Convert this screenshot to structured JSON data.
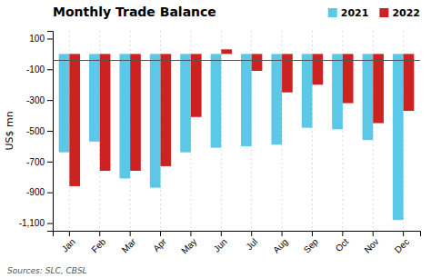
{
  "chart_data": {
    "type": "bar",
    "title": "Monthly Trade Balance",
    "ylabel": "US$ mn",
    "source": "Sources: SLC, CBSL",
    "categories": [
      "Jan",
      "Feb",
      "Mar",
      "Apr",
      "May",
      "Jun",
      "Jul",
      "Aug",
      "Sep",
      "Oct",
      "Nov",
      "Dec"
    ],
    "series": [
      {
        "name": "2021",
        "color": "#5bc8e8",
        "values": [
          -640,
          -570,
          -810,
          -870,
          -640,
          -610,
          -600,
          -590,
          -480,
          -490,
          -560,
          -1080
        ]
      },
      {
        "name": "2022",
        "color": "#cc2222",
        "values": [
          -860,
          -760,
          -760,
          -730,
          -410,
          30,
          -110,
          -250,
          -200,
          -320,
          -450,
          -370
        ]
      }
    ],
    "hline": -42,
    "ylim": [
      -1150,
      150
    ],
    "yticks": [
      100,
      -100,
      -300,
      -500,
      -700,
      -900,
      {
        "value": -1100,
        "label": "-1,100"
      }
    ],
    "grid": true,
    "legend": "upper right"
  }
}
